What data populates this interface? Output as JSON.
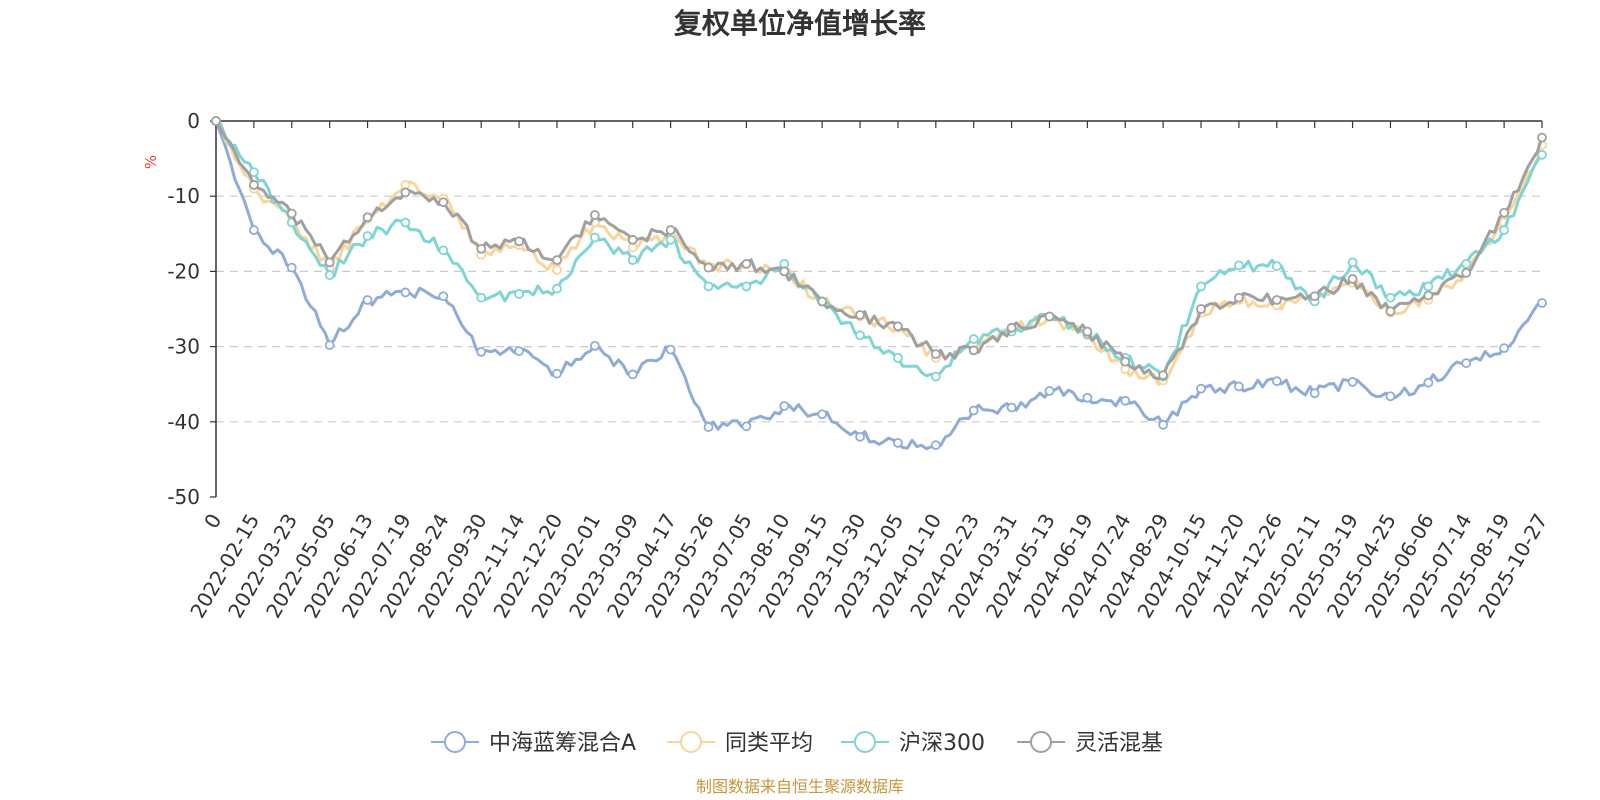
{
  "chart_data": {
    "type": "line",
    "title": "复权单位净值增长率",
    "ylabel": "%",
    "xlabel": "",
    "ylim": [
      -50,
      0
    ],
    "y_ticks": [
      0,
      -10,
      -20,
      -30,
      -40,
      -50
    ],
    "grid": true,
    "legend_position": "bottom",
    "x_tick_labels": [
      "0",
      "2022-02-15",
      "2022-03-23",
      "2022-05-05",
      "2022-06-13",
      "2022-07-19",
      "2022-08-24",
      "2022-09-30",
      "2022-11-14",
      "2022-12-20",
      "2023-02-01",
      "2023-03-09",
      "2023-04-17",
      "2023-05-26",
      "2023-07-05",
      "2023-08-10",
      "2023-09-15",
      "2023-10-30",
      "2023-12-05",
      "2024-01-10",
      "2024-02-23",
      "2024-03-31",
      "2024-05-13",
      "2024-06-19",
      "2024-07-24",
      "2024-08-29",
      "2024-10-15",
      "2024-11-20",
      "2024-12-26",
      "2025-02-11",
      "2025-03-19",
      "2025-04-25",
      "2025-06-06",
      "2025-07-14",
      "2025-08-19",
      "2025-10-27"
    ],
    "series": [
      {
        "name": "中海蓝筹混合A",
        "color": "#8facd9",
        "values": [
          0,
          -14.5,
          -19.5,
          -29.8,
          -23.8,
          -22.8,
          -23.3,
          -30.7,
          -30.6,
          -33.6,
          -29.9,
          -33.7,
          -30.4,
          -40.7,
          -40.6,
          -37.9,
          -39.0,
          -42.0,
          -42.8,
          -43.1,
          -38.5,
          -38.1,
          -35.9,
          -36.8,
          -37.2,
          -40.4,
          -35.6,
          -35.3,
          -34.6,
          -36.2,
          -34.7,
          -36.6,
          -34.8,
          -32.2,
          -30.2,
          -24.2
        ]
      },
      {
        "name": "同类平均",
        "color": "#f9d59b",
        "values": [
          0,
          -9.0,
          -13.5,
          -19.5,
          -13.0,
          -8.5,
          -10.3,
          -17.8,
          -16.5,
          -19.8,
          -13.5,
          -16.8,
          -15.0,
          -19.3,
          -19.0,
          -20.0,
          -24.0,
          -26.0,
          -27.5,
          -31.5,
          -30.5,
          -27.5,
          -26.0,
          -28.5,
          -33.0,
          -34.5,
          -25.5,
          -23.8,
          -24.5,
          -23.5,
          -21.5,
          -25.5,
          -23.8,
          -20.0,
          -13.5,
          -3.2
        ]
      },
      {
        "name": "沪深300",
        "color": "#7fd4d4",
        "values": [
          0,
          -6.8,
          -13.5,
          -20.5,
          -15.3,
          -13.5,
          -17.2,
          -23.5,
          -23.0,
          -22.3,
          -15.5,
          -18.5,
          -15.8,
          -22.0,
          -22.0,
          -19.0,
          -24.0,
          -28.5,
          -31.5,
          -34.0,
          -29.0,
          -28.0,
          -26.0,
          -28.3,
          -31.5,
          -34.0,
          -22.0,
          -19.2,
          -19.3,
          -24.0,
          -18.8,
          -23.5,
          -22.0,
          -19.0,
          -14.5,
          -4.5
        ]
      },
      {
        "name": "灵活混基",
        "color": "#a0a0a0",
        "values": [
          0,
          -8.5,
          -12.3,
          -18.8,
          -12.8,
          -9.5,
          -10.8,
          -17.0,
          -16.0,
          -18.5,
          -12.5,
          -15.8,
          -14.5,
          -19.5,
          -19.0,
          -20.0,
          -24.0,
          -25.8,
          -27.3,
          -31.0,
          -30.5,
          -27.5,
          -26.0,
          -28.0,
          -32.0,
          -33.8,
          -25.0,
          -23.5,
          -23.8,
          -23.3,
          -21.0,
          -25.3,
          -23.2,
          -20.2,
          -12.2,
          -2.2
        ]
      }
    ]
  },
  "footer": {
    "source": "制图数据来自恒生聚源数据库"
  }
}
